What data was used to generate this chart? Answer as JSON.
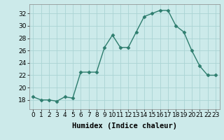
{
  "x": [
    0,
    1,
    2,
    3,
    4,
    5,
    6,
    7,
    8,
    9,
    10,
    11,
    12,
    13,
    14,
    15,
    16,
    17,
    18,
    19,
    20,
    21,
    22,
    23
  ],
  "y": [
    18.5,
    18.0,
    18.0,
    17.8,
    18.5,
    18.3,
    22.5,
    22.5,
    22.5,
    26.5,
    28.5,
    26.5,
    26.5,
    29.0,
    31.5,
    32.0,
    32.5,
    32.5,
    30.0,
    29.0,
    26.0,
    23.5,
    22.0,
    22.0
  ],
  "line_color": "#2e7d6e",
  "marker": "D",
  "marker_size": 2.5,
  "bg_color": "#cceaea",
  "grid_color": "#aad4d4",
  "xlabel": "Humidex (Indice chaleur)",
  "xlim": [
    -0.5,
    23.5
  ],
  "ylim": [
    16.5,
    33.5
  ],
  "yticks": [
    18,
    20,
    22,
    24,
    26,
    28,
    30,
    32
  ],
  "xticks": [
    0,
    1,
    2,
    3,
    4,
    5,
    6,
    7,
    8,
    9,
    10,
    11,
    12,
    13,
    14,
    15,
    16,
    17,
    18,
    19,
    20,
    21,
    22,
    23
  ],
  "xlabel_fontsize": 7.5,
  "tick_fontsize": 6.5
}
